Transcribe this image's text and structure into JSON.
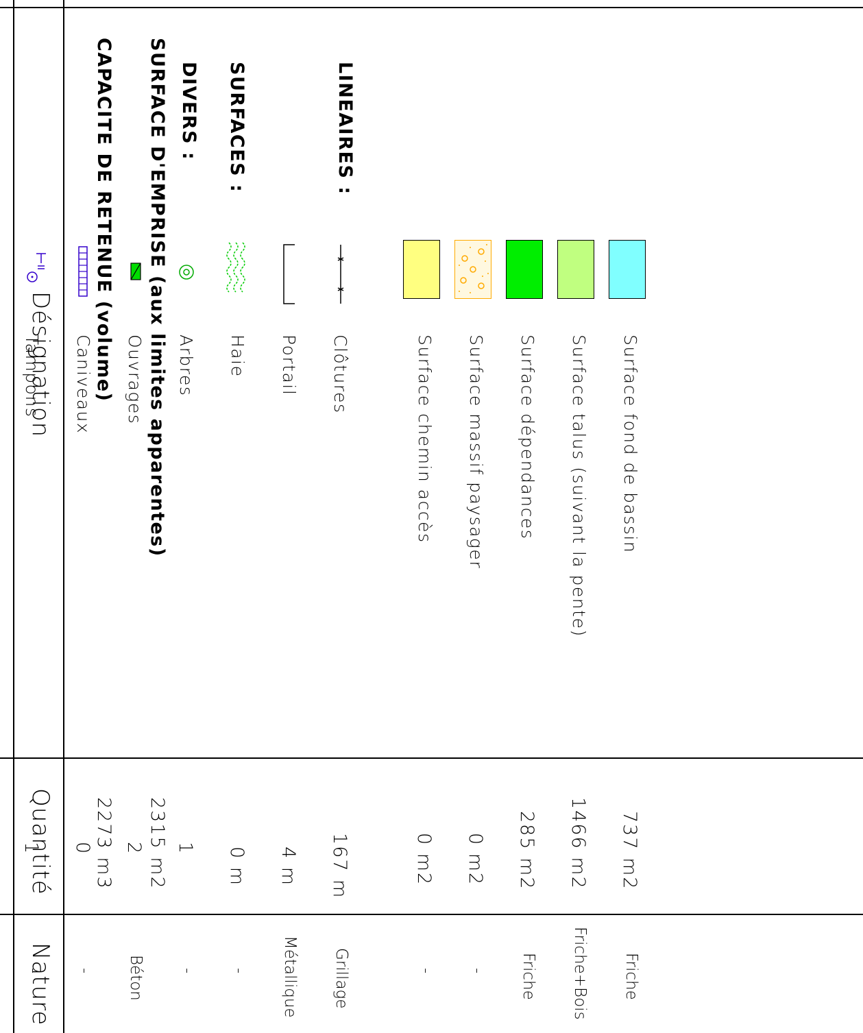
{
  "headers": {
    "designation": "Désignation",
    "quantite": "Quantité",
    "nature": "Nature"
  },
  "rows": {
    "capacite": {
      "label": "CAPACITE DE RETENUE (volume)",
      "quantity": "2273 m3"
    },
    "emprise": {
      "label": "SURFACE D'EMPRISE (aux limites apparentes)",
      "quantity": "2315 m2"
    },
    "surfaces_title": "SURFACES :",
    "surfaces": [
      {
        "label": "Surface fond de bassin",
        "quantity": "737 m2",
        "nature": "Friche",
        "color": "#80ffff"
      },
      {
        "label": "Surface talus (suivant la pente)",
        "quantity": "1466 m2",
        "nature": "Friche+Bois",
        "color": "#c0ff80"
      },
      {
        "label": "Surface dépendances",
        "quantity": "285 m2",
        "nature": "Friche",
        "color": "#00ee00"
      },
      {
        "label": "Surface massif paysager",
        "quantity": "0 m2",
        "nature": "-",
        "color": "#ffcc66"
      },
      {
        "label": "Surface chemin accès",
        "quantity": "0 m2",
        "nature": "-",
        "color": "#ffff80"
      }
    ],
    "lineaires_title": "LINEAIRES :",
    "lineaires": [
      {
        "label": "Clôtures",
        "quantity": "167 m",
        "nature": "Grillage",
        "icon": "fence-icon"
      },
      {
        "label": "Portail",
        "quantity": "4 m",
        "nature": "Métallique",
        "icon": "gate-icon"
      },
      {
        "label": "Haie",
        "quantity": "0 m",
        "nature": "-",
        "icon": "hedge-icon"
      }
    ],
    "divers_title": "DIVERS :",
    "divers": [
      {
        "label": "Arbres",
        "quantity": "1",
        "nature": "-",
        "icon": "tree-icon"
      },
      {
        "label": "Ouvrages",
        "quantity": "2",
        "nature": "Béton",
        "icon": "structure-icon"
      },
      {
        "label": "Caniveaux",
        "quantity": "0",
        "nature": "-",
        "icon": "gutter-icon"
      },
      {
        "label": "Tampons",
        "quantity": "1",
        "nature": "-",
        "icon": "manhole-icon"
      }
    ]
  },
  "colors": {
    "line": "#000000",
    "tree": "#00aa00",
    "hedge": "#00cc00",
    "gutter": "#3300cc",
    "manhole": "#3300cc",
    "structure": "#00dd00"
  }
}
